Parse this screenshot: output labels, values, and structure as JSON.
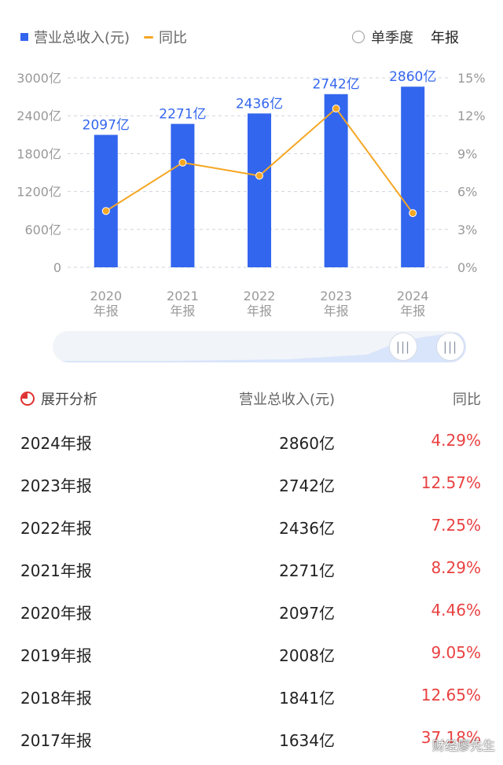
{
  "legend": {
    "revenue_label": "营业总收入(元)",
    "yoy_label": "同比"
  },
  "period_toggle": {
    "quarterly_label": "单季度",
    "annual_label": "年报"
  },
  "colors": {
    "bar": "#3366ee",
    "line": "#f5a623",
    "positive": "#e94141",
    "axis_text": "#999999"
  },
  "chart_data": {
    "type": "bar",
    "categories": [
      [
        "2020",
        "年报"
      ],
      [
        "2021",
        "年报"
      ],
      [
        "2022",
        "年报"
      ],
      [
        "2023",
        "年报"
      ],
      [
        "2024",
        "年报"
      ]
    ],
    "series": [
      {
        "name": "营业总收入(元)",
        "type": "bar",
        "axis": "left",
        "values": [
          2097,
          2271,
          2436,
          2742,
          2860
        ],
        "labels": [
          "2097亿",
          "2271亿",
          "2436亿",
          "2742亿",
          "2860亿"
        ]
      },
      {
        "name": "同比",
        "type": "line",
        "axis": "right",
        "values": [
          4.46,
          8.29,
          7.25,
          12.57,
          4.29
        ]
      }
    ],
    "y_left": {
      "ticks": [
        "0",
        "600亿",
        "1200亿",
        "1800亿",
        "2400亿",
        "3000亿"
      ],
      "ylim": [
        0,
        3000
      ]
    },
    "y_right": {
      "ticks": [
        "0%",
        "3%",
        "6%",
        "9%",
        "12%",
        "15%"
      ],
      "ylim": [
        0,
        15
      ]
    },
    "grid": true
  },
  "slider": {
    "left_handle_icon": "grip-icon",
    "right_handle_icon": "grip-icon",
    "grip_glyph": "|||"
  },
  "table": {
    "analysis_label": "展开分析",
    "col_revenue": "营业总收入(元)",
    "col_yoy": "同比",
    "rows": [
      {
        "period": "2024年报",
        "revenue": "2860亿",
        "yoy": "4.29%"
      },
      {
        "period": "2023年报",
        "revenue": "2742亿",
        "yoy": "12.57%"
      },
      {
        "period": "2022年报",
        "revenue": "2436亿",
        "yoy": "7.25%"
      },
      {
        "period": "2021年报",
        "revenue": "2271亿",
        "yoy": "8.29%"
      },
      {
        "period": "2020年报",
        "revenue": "2097亿",
        "yoy": "4.46%"
      },
      {
        "period": "2019年报",
        "revenue": "2008亿",
        "yoy": "9.05%"
      },
      {
        "period": "2018年报",
        "revenue": "1841亿",
        "yoy": "12.65%"
      },
      {
        "period": "2017年报",
        "revenue": "1634亿",
        "yoy": "37.18%"
      }
    ]
  },
  "watermark": "财经廖先生"
}
